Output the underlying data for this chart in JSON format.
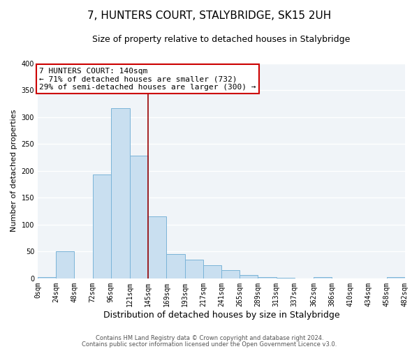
{
  "title": "7, HUNTERS COURT, STALYBRIDGE, SK15 2UH",
  "subtitle": "Size of property relative to detached houses in Stalybridge",
  "xlabel": "Distribution of detached houses by size in Stalybridge",
  "ylabel": "Number of detached properties",
  "bar_edges": [
    0,
    24,
    48,
    72,
    96,
    121,
    145,
    169,
    193,
    217,
    241,
    265,
    289,
    313,
    337,
    362,
    386,
    410,
    434,
    458,
    482
  ],
  "bar_heights": [
    2,
    50,
    0,
    193,
    317,
    228,
    115,
    45,
    35,
    24,
    15,
    6,
    2,
    1,
    0,
    2,
    0,
    0,
    0,
    2
  ],
  "bar_color": "#c9dff0",
  "bar_edge_color": "#7ab4d8",
  "vline_x": 145,
  "vline_color": "#990000",
  "annotation_text": "7 HUNTERS COURT: 140sqm\n← 71% of detached houses are smaller (732)\n29% of semi-detached houses are larger (300) →",
  "annotation_box_color": "#ffffff",
  "annotation_box_edge_color": "#cc0000",
  "ylim": [
    0,
    400
  ],
  "yticks": [
    0,
    50,
    100,
    150,
    200,
    250,
    300,
    350,
    400
  ],
  "xtick_labels": [
    "0sqm",
    "24sqm",
    "48sqm",
    "72sqm",
    "96sqm",
    "121sqm",
    "145sqm",
    "169sqm",
    "193sqm",
    "217sqm",
    "241sqm",
    "265sqm",
    "289sqm",
    "313sqm",
    "337sqm",
    "362sqm",
    "386sqm",
    "410sqm",
    "434sqm",
    "458sqm",
    "482sqm"
  ],
  "footer1": "Contains HM Land Registry data © Crown copyright and database right 2024.",
  "footer2": "Contains public sector information licensed under the Open Government Licence v3.0.",
  "bg_color": "#ffffff",
  "plot_bg_color": "#f0f4f8",
  "grid_color": "#ffffff",
  "title_fontsize": 11,
  "subtitle_fontsize": 9,
  "xlabel_fontsize": 9,
  "ylabel_fontsize": 8,
  "tick_fontsize": 7,
  "footer_fontsize": 6,
  "annot_fontsize": 8
}
